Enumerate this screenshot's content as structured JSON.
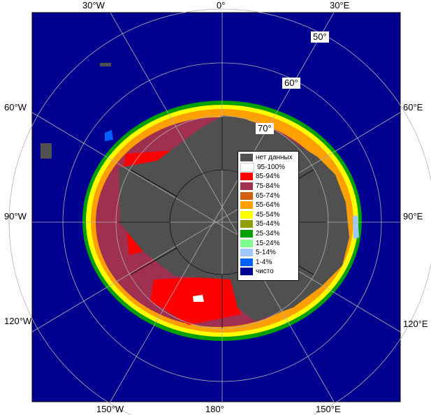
{
  "axes": {
    "top": [
      "30°W",
      "0°",
      "30°E"
    ],
    "left": [
      "60°W",
      "90°W",
      "120°W"
    ],
    "right": [
      "60°E",
      "90°E",
      "120°E"
    ],
    "bottom": [
      "150°W",
      "180°",
      "150°E"
    ]
  },
  "latitude_labels": [
    "50°",
    "60°",
    "70°"
  ],
  "legend": [
    {
      "label": "нет данных",
      "color": "#505050"
    },
    {
      "label": "95-100%",
      "color": "#ffffff"
    },
    {
      "label": "85-94%",
      "color": "#ff0000"
    },
    {
      "label": "75-84%",
      "color": "#a03050"
    },
    {
      "label": "65-74%",
      "color": "#d06010"
    },
    {
      "label": "55-64%",
      "color": "#ffa000"
    },
    {
      "label": "45-54%",
      "color": "#ffff00"
    },
    {
      "label": "35-44%",
      "color": "#90a000"
    },
    {
      "label": "25-34%",
      "color": "#00a000"
    },
    {
      "label": "15-24%",
      "color": "#80ff90"
    },
    {
      "label": "5-14%",
      "color": "#a0c8ff"
    },
    {
      "label": "1-4%",
      "color": "#0060ff"
    },
    {
      "label": "чисто",
      "color": "#000090"
    }
  ],
  "colors": {
    "ocean": "#000090",
    "land": "#505050",
    "grid": "#b0b0b0"
  }
}
